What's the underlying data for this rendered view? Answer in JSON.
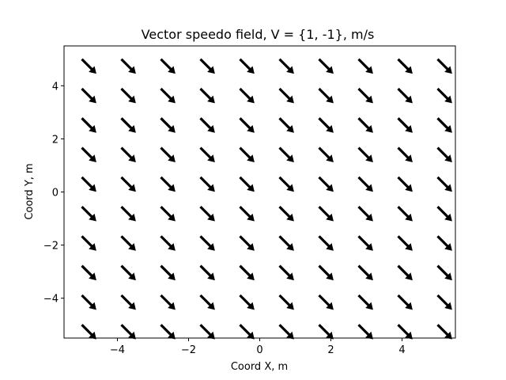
{
  "chart_data": {
    "type": "quiver",
    "title": "Vector speedo field, V = {1, -1}, m/s",
    "xlabel": "Coord X, m",
    "ylabel": "Coord Y, m",
    "xlim": [
      -5.5,
      5.5
    ],
    "ylim": [
      -5.5,
      5.5
    ],
    "xticks": [
      -4,
      -2,
      0,
      2,
      4
    ],
    "yticks": [
      -4,
      -2,
      0,
      2,
      4
    ],
    "xtick_labels": [
      "−4",
      "−2",
      "0",
      "2",
      "4"
    ],
    "ytick_labels": [
      "−4",
      "−2",
      "0",
      "2",
      "4"
    ],
    "grid": false,
    "vector": {
      "u": 1,
      "v": -1
    },
    "x": [
      -5.0,
      -3.889,
      -2.778,
      -1.667,
      -0.556,
      0.556,
      1.667,
      2.778,
      3.889,
      5.0
    ],
    "y": [
      -5.0,
      -3.889,
      -2.778,
      -1.667,
      -0.556,
      0.556,
      1.667,
      2.778,
      3.889,
      5.0
    ],
    "arrow_color": "#000000"
  }
}
